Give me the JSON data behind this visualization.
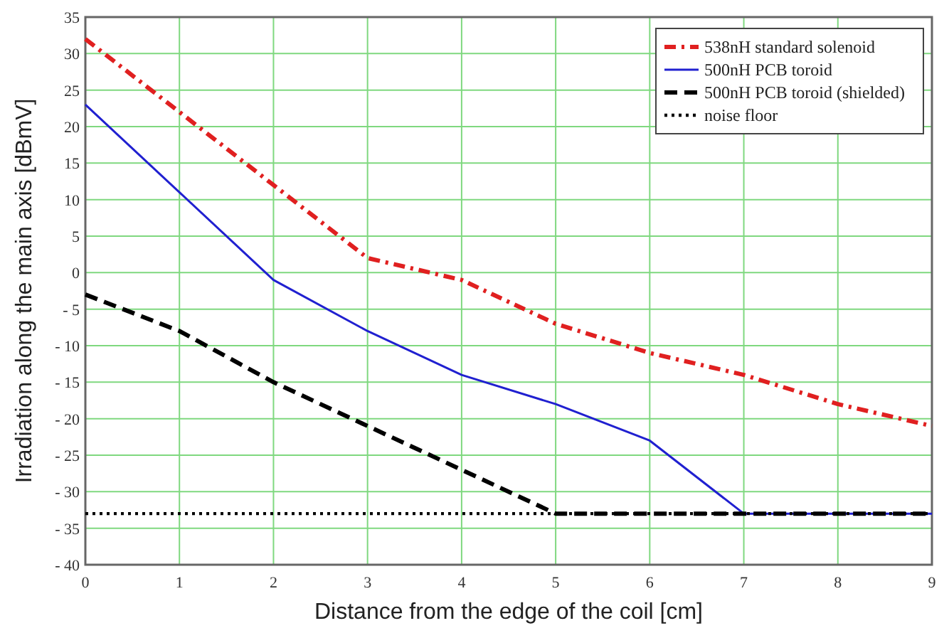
{
  "chart_data": {
    "type": "line",
    "xlabel": "Distance from the edge of the coil  [cm]",
    "ylabel": "Irradiation along the main axis  [dBmV]",
    "x": [
      0,
      1,
      2,
      3,
      4,
      5,
      6,
      7,
      8,
      9
    ],
    "series": [
      {
        "name": "538nH standard solenoid",
        "color": "#e02020",
        "line_style": "dashdot",
        "values": [
          32,
          22,
          12,
          2,
          -1,
          -7,
          -11,
          -14,
          -18,
          -21
        ]
      },
      {
        "name": "500nH PCB toroid",
        "color": "#2020d0",
        "line_style": "solid",
        "values": [
          23,
          11,
          -1,
          -8,
          -14,
          -18,
          -23,
          -33,
          -33,
          -33
        ]
      },
      {
        "name": "500nH PCB toroid (shielded)",
        "color": "#000000",
        "line_style": "dashed",
        "values": [
          -3,
          -8,
          -15,
          -21,
          -27,
          -33,
          -33,
          -33,
          -33,
          -33
        ]
      },
      {
        "name": "noise floor",
        "color": "#000000",
        "line_style": "dotted",
        "values": [
          -33,
          -33,
          -33,
          -33,
          -33,
          -33,
          -33,
          -33,
          -33,
          -33
        ]
      }
    ],
    "xlim": [
      0,
      9
    ],
    "xticks": [
      0,
      1,
      2,
      3,
      4,
      5,
      6,
      7,
      8,
      9
    ],
    "ylim": [
      -40,
      35
    ],
    "yticks": [
      -40,
      -35,
      -30,
      -25,
      -20,
      -15,
      -10,
      -5,
      0,
      5,
      10,
      15,
      20,
      25,
      30,
      35
    ],
    "grid": true,
    "legend": "top right",
    "marker": "none"
  }
}
